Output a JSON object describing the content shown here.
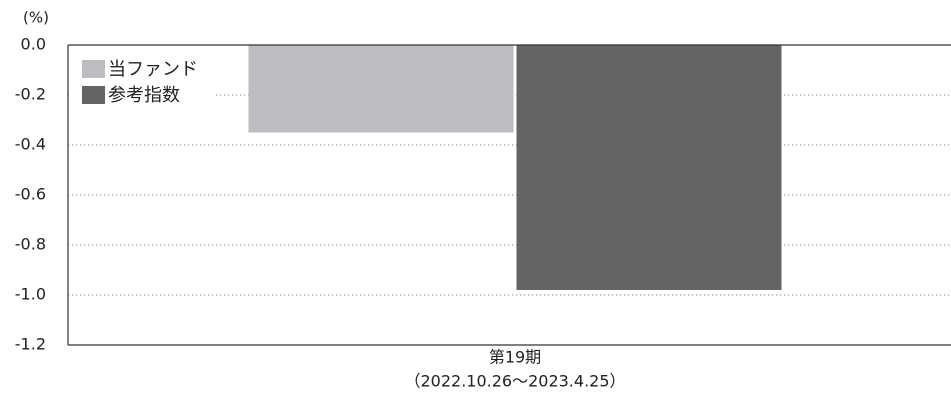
{
  "chart_data": {
    "type": "bar",
    "unit_label": "(%)",
    "categories": [
      "第19期"
    ],
    "category_sublabels": [
      "（2022.10.26～2023.4.25）"
    ],
    "series": [
      {
        "name": "当ファンド",
        "values": [
          -0.35
        ],
        "color": "#bcbdc0"
      },
      {
        "name": "参考指数",
        "values": [
          -0.98
        ],
        "color": "#646464"
      }
    ],
    "ylim": [
      -1.2,
      0.0
    ],
    "yticks": [
      0.0,
      -0.2,
      -0.4,
      -0.6,
      -0.8,
      -1.0,
      -1.2
    ],
    "ytick_labels": [
      "0.0",
      "-0.2",
      "-0.4",
      "-0.6",
      "-0.8",
      "-1.0",
      "-1.2"
    ],
    "grid": true,
    "legend": "top-left"
  }
}
